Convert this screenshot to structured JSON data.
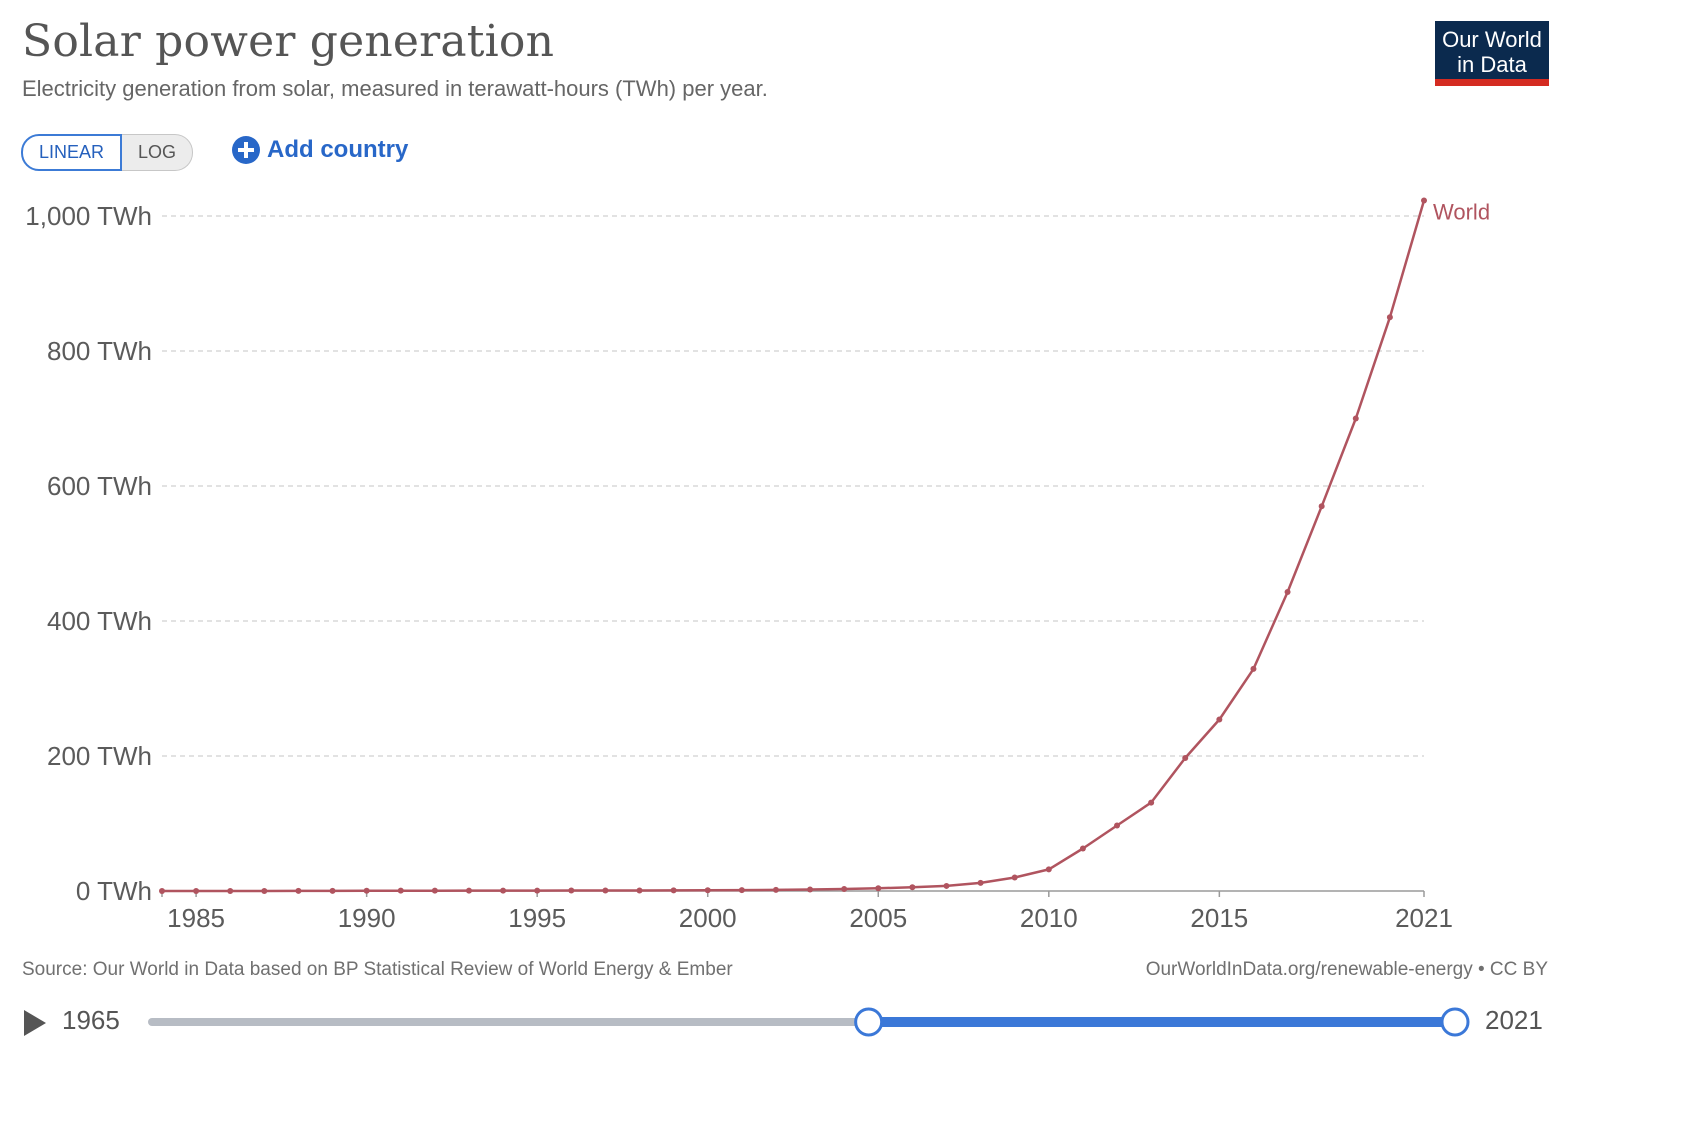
{
  "header": {
    "title": "Solar power generation",
    "subtitle": "Electricity generation from solar, measured in terawatt-hours (TWh) per year."
  },
  "logo": {
    "line1": "Our World",
    "line2": "in Data"
  },
  "controls": {
    "linear_label": "LINEAR",
    "log_label": "LOG",
    "add_country_label": "Add country"
  },
  "footer": {
    "source": "Source: Our World in Data based on BP Statistical Review of World Energy & Ember",
    "url": "OurWorldInData.org/renewable-energy • CC BY"
  },
  "timeline": {
    "start": "1965",
    "end": "2021",
    "selected_start_fraction": 0.55,
    "selected_end_fraction": 1.0
  },
  "colors": {
    "series": "#b0545f",
    "accent": "#3b78d8",
    "logo_bg": "#0b2a4e",
    "logo_bar": "#d42b21"
  },
  "chart_data": {
    "type": "line",
    "title": "Solar power generation",
    "subtitle": "Electricity generation from solar, measured in terawatt-hours (TWh) per year.",
    "xlabel": "",
    "ylabel": "",
    "xlim": [
      1984,
      2021
    ],
    "ylim": [
      0,
      1000
    ],
    "y_unit": " TWh",
    "x_ticks": [
      1985,
      1990,
      1995,
      2000,
      2005,
      2010,
      2015,
      2021
    ],
    "y_ticks": [
      0,
      200,
      400,
      600,
      800,
      1000
    ],
    "y_tick_labels": [
      "0 TWh",
      "200 TWh",
      "400 TWh",
      "600 TWh",
      "800 TWh",
      "1,000 TWh"
    ],
    "grid": "horizontal dashed",
    "legend": "inline label at line end",
    "series": [
      {
        "name": "World",
        "x": [
          1984,
          1985,
          1986,
          1987,
          1988,
          1989,
          1990,
          1991,
          1992,
          1993,
          1994,
          1995,
          1996,
          1997,
          1998,
          1999,
          2000,
          2001,
          2002,
          2003,
          2004,
          2005,
          2006,
          2007,
          2008,
          2009,
          2010,
          2011,
          2012,
          2013,
          2014,
          2015,
          2016,
          2017,
          2018,
          2019,
          2020,
          2021
        ],
        "values": [
          0.01,
          0.02,
          0.03,
          0.05,
          0.1,
          0.2,
          0.4,
          0.5,
          0.5,
          0.6,
          0.6,
          0.6,
          0.7,
          0.7,
          0.8,
          0.9,
          1.1,
          1.3,
          1.7,
          2.2,
          2.9,
          4,
          5.6,
          7.5,
          12,
          20,
          32,
          63,
          97,
          131,
          197,
          254,
          329,
          443,
          570,
          700,
          850,
          1023
        ]
      }
    ]
  }
}
